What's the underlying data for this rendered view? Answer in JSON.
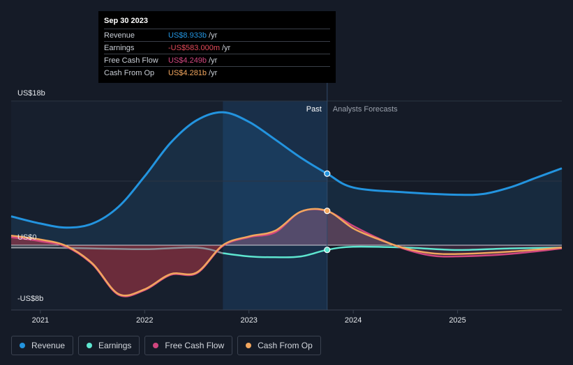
{
  "colors": {
    "background": "#151b27",
    "revenue": "#2394df",
    "earnings": "#5ee6d0",
    "free_cash_flow": "#d0467f",
    "cash_from_op": "#f2a65e",
    "past_shade": "#1b3553"
  },
  "tooltip": {
    "date": "Sep 30 2023",
    "rows": [
      {
        "label": "Revenue",
        "value": "US$8.933b",
        "unit": "/yr",
        "color": "#2394df"
      },
      {
        "label": "Earnings",
        "value": "-US$583.000m",
        "unit": "/yr",
        "color": "#e64b5a"
      },
      {
        "label": "Free Cash Flow",
        "value": "US$4.249b",
        "unit": "/yr",
        "color": "#d0467f"
      },
      {
        "label": "Cash From Op",
        "value": "US$4.281b",
        "unit": "/yr",
        "color": "#f2a65e"
      }
    ]
  },
  "legend": [
    {
      "label": "Revenue",
      "color": "#2394df"
    },
    {
      "label": "Earnings",
      "color": "#5ee6d0"
    },
    {
      "label": "Free Cash Flow",
      "color": "#d0467f"
    },
    {
      "label": "Cash From Op",
      "color": "#f2a65e"
    }
  ],
  "chart_data": {
    "type": "line",
    "title": "",
    "xlabel": "",
    "ylabel": "",
    "y_tick_labels": [
      "US$18b",
      "US$0",
      "-US$8b"
    ],
    "y_ticks": [
      18,
      0,
      -8
    ],
    "ylim": [
      -8,
      18
    ],
    "xlim": [
      2020.72,
      2026.0
    ],
    "x_tick_labels": [
      "2021",
      "2022",
      "2023",
      "2024",
      "2025"
    ],
    "x_ticks": [
      2021,
      2022,
      2023,
      2024,
      2025
    ],
    "past_label": "Past",
    "forecast_label": "Analysts Forecasts",
    "divider_x": 2023.75,
    "highlight_x": 2022.75,
    "grid": true,
    "legend_position": "bottom",
    "series": [
      {
        "name": "Revenue",
        "color": "#2394df",
        "points": [
          [
            2020.72,
            3.6
          ],
          [
            2021.0,
            2.7
          ],
          [
            2021.25,
            2.2
          ],
          [
            2021.5,
            2.7
          ],
          [
            2021.75,
            4.8
          ],
          [
            2022.0,
            8.6
          ],
          [
            2022.25,
            12.8
          ],
          [
            2022.5,
            15.6
          ],
          [
            2022.75,
            16.6
          ],
          [
            2023.0,
            15.4
          ],
          [
            2023.25,
            13.2
          ],
          [
            2023.5,
            10.9
          ],
          [
            2023.75,
            8.933
          ],
          [
            2024.0,
            7.2
          ],
          [
            2024.5,
            6.6
          ],
          [
            2025.0,
            6.3
          ],
          [
            2025.25,
            6.4
          ],
          [
            2025.5,
            7.2
          ],
          [
            2025.75,
            8.4
          ],
          [
            2026.0,
            9.6
          ]
        ]
      },
      {
        "name": "Earnings",
        "color": "#5ee6d0",
        "points": [
          [
            2020.72,
            -0.3
          ],
          [
            2021.0,
            -0.3
          ],
          [
            2021.5,
            -0.4
          ],
          [
            2022.0,
            -0.5
          ],
          [
            2022.5,
            -0.3
          ],
          [
            2022.75,
            -1.0
          ],
          [
            2023.0,
            -1.4
          ],
          [
            2023.25,
            -1.5
          ],
          [
            2023.5,
            -1.4
          ],
          [
            2023.75,
            -0.583
          ],
          [
            2024.0,
            -0.2
          ],
          [
            2024.5,
            -0.3
          ],
          [
            2025.0,
            -0.6
          ],
          [
            2025.5,
            -0.4
          ],
          [
            2026.0,
            -0.3
          ]
        ]
      },
      {
        "name": "Free Cash Flow",
        "color": "#d0467f",
        "points": [
          [
            2020.72,
            1.0
          ],
          [
            2021.0,
            0.5
          ],
          [
            2021.25,
            -0.2
          ],
          [
            2021.5,
            -2.4
          ],
          [
            2021.75,
            -6.2
          ],
          [
            2022.0,
            -5.6
          ],
          [
            2022.25,
            -3.7
          ],
          [
            2022.5,
            -3.5
          ],
          [
            2022.75,
            -0.1
          ],
          [
            2023.0,
            1.0
          ],
          [
            2023.25,
            1.6
          ],
          [
            2023.5,
            4.2
          ],
          [
            2023.75,
            4.249
          ],
          [
            2024.0,
            2.4
          ],
          [
            2024.25,
            0.8
          ],
          [
            2024.5,
            -0.5
          ],
          [
            2024.75,
            -1.3
          ],
          [
            2025.0,
            -1.4
          ],
          [
            2025.5,
            -1.1
          ],
          [
            2026.0,
            -0.4
          ]
        ]
      },
      {
        "name": "Cash From Op",
        "color": "#f2a65e",
        "points": [
          [
            2020.72,
            1.2
          ],
          [
            2021.0,
            0.7
          ],
          [
            2021.25,
            -0.1
          ],
          [
            2021.5,
            -2.3
          ],
          [
            2021.75,
            -6.1
          ],
          [
            2022.0,
            -5.5
          ],
          [
            2022.25,
            -3.6
          ],
          [
            2022.5,
            -3.4
          ],
          [
            2022.75,
            0.0
          ],
          [
            2023.0,
            1.1
          ],
          [
            2023.25,
            1.8
          ],
          [
            2023.5,
            4.2
          ],
          [
            2023.75,
            4.281
          ],
          [
            2024.0,
            2.1
          ],
          [
            2024.25,
            0.7
          ],
          [
            2024.5,
            -0.4
          ],
          [
            2024.75,
            -1.0
          ],
          [
            2025.0,
            -1.1
          ],
          [
            2025.5,
            -0.8
          ],
          [
            2026.0,
            -0.3
          ]
        ]
      }
    ]
  }
}
